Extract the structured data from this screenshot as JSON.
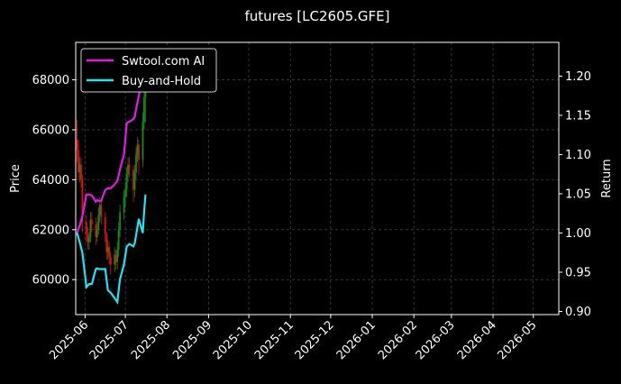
{
  "chart_data": {
    "type": "line",
    "title": "futures [LC2605.GFE]",
    "ylabel_left": "Price",
    "ylabel_right": "Return",
    "x_ticks": [
      "2025-06",
      "2025-07",
      "2025-08",
      "2025-09",
      "2025-10",
      "2025-11",
      "2025-12",
      "2026-01",
      "2026-02",
      "2026-03",
      "2026-04",
      "2026-05"
    ],
    "x_range": [
      "2025-05-25",
      "2026-05-20"
    ],
    "y_left": {
      "ylim": [
        58600,
        69500
      ],
      "ticks": [
        60000,
        62000,
        64000,
        66000,
        68000
      ]
    },
    "y_right": {
      "ylim": [
        0.896,
        1.243
      ],
      "ticks": [
        0.9,
        0.95,
        1.0,
        1.05,
        1.1,
        1.15,
        1.2
      ]
    },
    "tick_labels_left": [
      "60000",
      "62000",
      "64000",
      "66000",
      "68000"
    ],
    "tick_labels_right": [
      "0.90",
      "0.95",
      "1.00",
      "1.05",
      "1.10",
      "1.15",
      "1.20"
    ],
    "grid": true,
    "legend_position": "top-left",
    "colors": {
      "strategy": "#e619e6",
      "buy_hold": "#1ee6f0",
      "up": "#1a8a1a",
      "down": "#e01010",
      "grid": "#555555"
    },
    "series": [
      {
        "name": "Swtool.com AI",
        "axis": "right",
        "x": [
          "2025-05-26",
          "2025-05-28",
          "2025-05-29",
          "2025-05-30",
          "2025-06-02",
          "2025-06-04",
          "2025-06-06",
          "2025-06-09",
          "2025-06-10",
          "2025-06-11",
          "2025-06-13",
          "2025-06-16",
          "2025-06-18",
          "2025-06-20",
          "2025-06-23",
          "2025-06-25",
          "2025-06-27",
          "2025-06-30",
          "2025-07-02",
          "2025-07-04",
          "2025-07-07",
          "2025-07-08",
          "2025-07-09",
          "2025-07-11",
          "2025-07-14",
          "2025-07-15",
          "2025-07-16"
        ],
        "values": [
          1.0,
          1.01,
          1.015,
          1.022,
          1.049,
          1.049,
          1.048,
          1.04,
          1.042,
          1.041,
          1.041,
          1.055,
          1.057,
          1.057,
          1.062,
          1.066,
          1.081,
          1.1,
          1.14,
          1.142,
          1.145,
          1.148,
          1.158,
          1.175,
          1.198,
          1.213,
          1.22
        ]
      },
      {
        "name": "Buy-and-Hold",
        "axis": "right",
        "x": [
          "2025-05-26",
          "2025-05-28",
          "2025-05-29",
          "2025-05-30",
          "2025-06-02",
          "2025-06-04",
          "2025-06-06",
          "2025-06-09",
          "2025-06-10",
          "2025-06-11",
          "2025-06-13",
          "2025-06-16",
          "2025-06-18",
          "2025-06-20",
          "2025-06-23",
          "2025-06-25",
          "2025-06-27",
          "2025-06-30",
          "2025-07-02",
          "2025-07-04",
          "2025-07-07",
          "2025-07-08",
          "2025-07-09",
          "2025-07-11",
          "2025-07-14",
          "2025-07-15",
          "2025-07-16"
        ],
        "values": [
          1.0,
          0.988,
          0.981,
          0.975,
          0.931,
          0.935,
          0.935,
          0.954,
          0.955,
          0.954,
          0.954,
          0.954,
          0.927,
          0.924,
          0.917,
          0.912,
          0.941,
          0.96,
          0.983,
          0.986,
          0.983,
          0.987,
          0.997,
          1.018,
          1.0,
          1.027,
          1.049
        ]
      }
    ],
    "candles": {
      "axis": "left",
      "x": [
        "2025-05-26",
        "2025-05-27",
        "2025-05-28",
        "2025-05-29",
        "2025-05-30",
        "2025-06-02",
        "2025-06-03",
        "2025-06-04",
        "2025-06-05",
        "2025-06-06",
        "2025-06-09",
        "2025-06-10",
        "2025-06-11",
        "2025-06-12",
        "2025-06-13",
        "2025-06-16",
        "2025-06-17",
        "2025-06-18",
        "2025-06-19",
        "2025-06-20",
        "2025-06-23",
        "2025-06-24",
        "2025-06-25",
        "2025-06-26",
        "2025-06-27",
        "2025-06-30",
        "2025-07-01",
        "2025-07-02",
        "2025-07-03",
        "2025-07-04",
        "2025-07-07",
        "2025-07-08",
        "2025-07-09",
        "2025-07-10",
        "2025-07-11",
        "2025-07-14",
        "2025-07-15",
        "2025-07-16"
      ],
      "open": [
        65600,
        65200,
        64300,
        64600,
        64000,
        62300,
        61800,
        61500,
        61700,
        62400,
        62200,
        61700,
        62000,
        62600,
        63000,
        62500,
        61800,
        61100,
        61300,
        60900,
        60600,
        61000,
        60700,
        61200,
        62000,
        62700,
        63300,
        63600,
        64200,
        64600,
        64400,
        63600,
        64300,
        65000,
        65400,
        64800,
        66300,
        67300
      ],
      "close": [
        65200,
        64300,
        64600,
        64000,
        62300,
        61800,
        61500,
        61700,
        62400,
        62200,
        61700,
        62000,
        62600,
        63000,
        62500,
        61800,
        61100,
        61300,
        60900,
        60600,
        61000,
        60700,
        61200,
        62000,
        62700,
        63300,
        63600,
        64200,
        64600,
        64400,
        63600,
        64300,
        65000,
        65400,
        64800,
        66300,
        67300,
        68000
      ],
      "high": [
        66400,
        65600,
        64900,
        64900,
        64200,
        62600,
        62100,
        61900,
        62700,
        62700,
        62500,
        62300,
        62900,
        63300,
        63200,
        62700,
        61900,
        61600,
        61500,
        61100,
        61300,
        61200,
        61500,
        62300,
        63000,
        63600,
        63900,
        64500,
        64900,
        64900,
        64600,
        64600,
        65300,
        65700,
        65600,
        66700,
        67800,
        68900
      ],
      "low": [
        64700,
        64000,
        63900,
        63700,
        61900,
        61500,
        61200,
        61200,
        61500,
        61900,
        61400,
        61500,
        61800,
        62300,
        62200,
        61500,
        60800,
        60800,
        60600,
        60200,
        60300,
        60400,
        60400,
        60900,
        61700,
        62400,
        62900,
        63300,
        63900,
        64100,
        63100,
        63300,
        64000,
        64700,
        64200,
        64500,
        66000,
        66300
      ]
    }
  }
}
